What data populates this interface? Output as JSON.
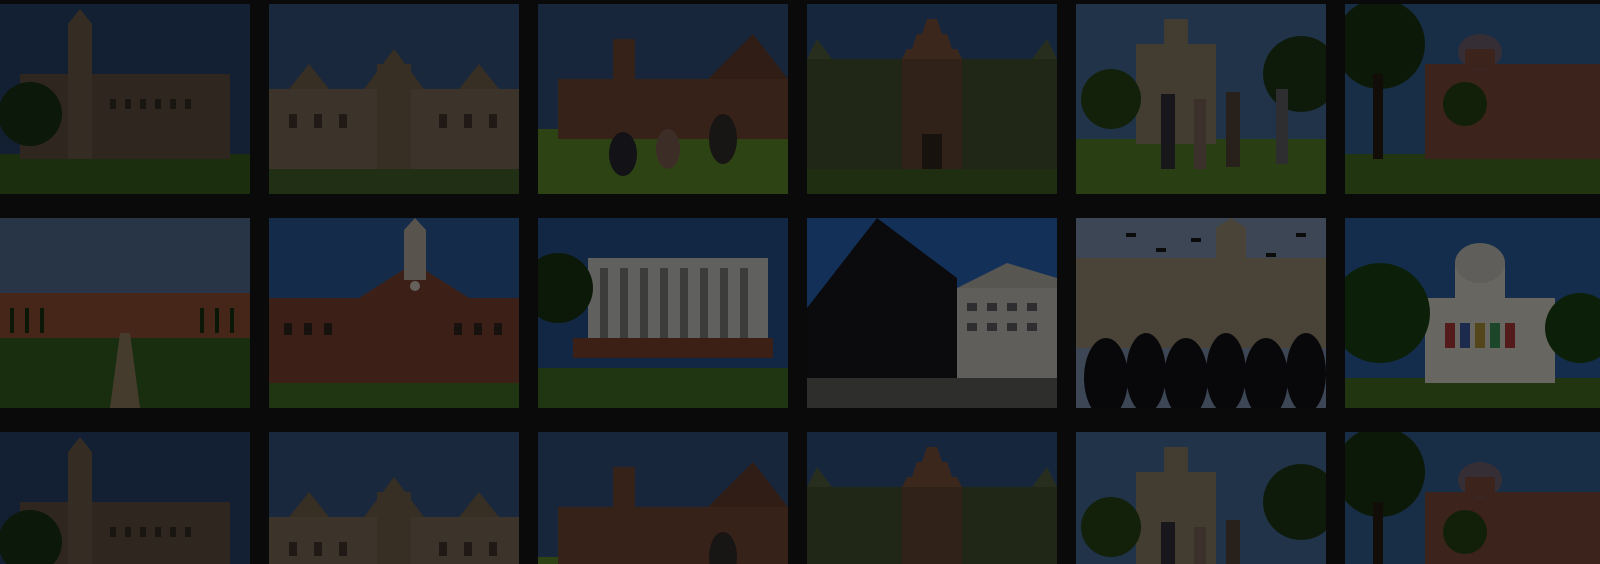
{
  "gallery": {
    "rows": 3,
    "columns": 6,
    "overlay_color": "#000000",
    "tiles": [
      [
        "campus-clocktower-hall-photo",
        "gothic-college-building-photo",
        "students-on-lawn-photo",
        "stepped-gable-hall-photo",
        "students-walking-campus-photo",
        "domed-building-trees-photo"
      ],
      [
        "formal-garden-palace-photo",
        "red-brick-clocktower-photo",
        "modern-columned-hall-photo",
        "modern-angular-building-photo",
        "graduation-cap-toss-photo",
        "domed-library-banners-photo"
      ],
      [
        "campus-clocktower-hall-photo",
        "gothic-college-building-photo",
        "students-on-lawn-photo",
        "stepped-gable-hall-photo",
        "students-walking-campus-photo",
        "domed-building-trees-photo"
      ]
    ]
  }
}
